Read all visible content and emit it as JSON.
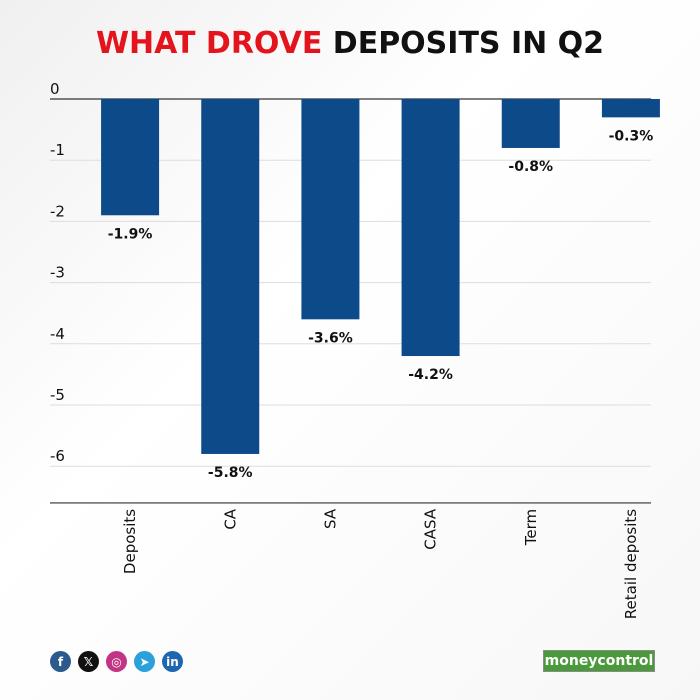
{
  "title": {
    "highlight": "WHAT DROVE",
    "rest": "DEPOSITS IN Q2"
  },
  "colors": {
    "bar": "#0d4a8a",
    "highlight": "#e3141c",
    "grid": "#dddddd",
    "axis": "#333333"
  },
  "chart_data": {
    "type": "bar",
    "title": "WHAT DROVE DEPOSITS IN Q2",
    "categories": [
      "Deposits",
      "CA",
      "SA",
      "CASA",
      "Term",
      "Retail deposits"
    ],
    "values": [
      -1.9,
      -5.8,
      -3.6,
      -4.2,
      -0.8,
      -0.3
    ],
    "data_labels": [
      "-1.9%",
      "-5.8%",
      "-3.6%",
      "-4.2%",
      "-0.8%",
      "-0.3%"
    ],
    "yticks": [
      "0",
      "-1",
      "-2",
      "-3",
      "-4",
      "-5",
      "-6"
    ],
    "ytick_values": [
      0,
      -1,
      -2,
      -3,
      -4,
      -5,
      -6
    ],
    "ylim": [
      -6.6,
      0
    ],
    "grid": true,
    "xlabel": "",
    "ylabel": ""
  },
  "footer": {
    "social": [
      {
        "name": "facebook-icon",
        "glyph": "f"
      },
      {
        "name": "x-icon",
        "glyph": "𝕏"
      },
      {
        "name": "instagram-icon",
        "glyph": "◎"
      },
      {
        "name": "telegram-icon",
        "glyph": "➤"
      },
      {
        "name": "linkedin-icon",
        "glyph": "in"
      }
    ],
    "brand": "moneycontrol"
  }
}
